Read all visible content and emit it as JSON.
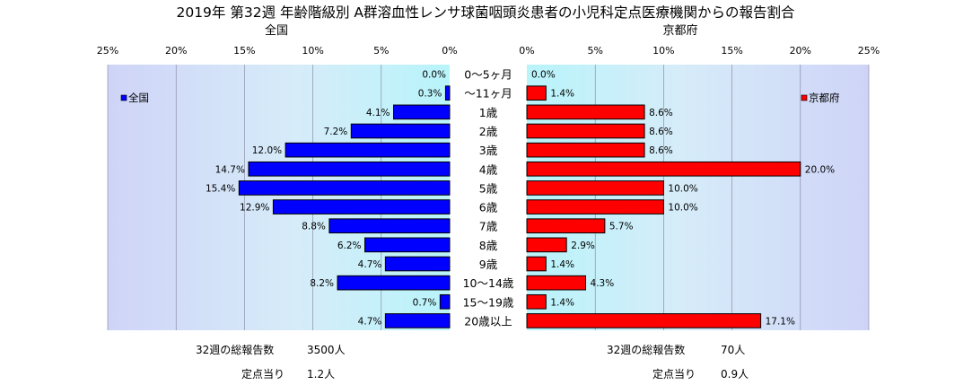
{
  "chart_data": {
    "type": "bar",
    "title": "2019年 第32週 年齢階級別 A群溶血性レンサ球菌咽頭炎患者の小児科定点医療機関からの報告割合",
    "categories": [
      "0～5ヶ月",
      "～11ヶ月",
      "1歳",
      "2歳",
      "3歳",
      "4歳",
      "5歳",
      "6歳",
      "7歳",
      "8歳",
      "9歳",
      "10～14歳",
      "15～19歳",
      "20歳以上"
    ],
    "xlim": [
      0,
      25
    ],
    "ticks": [
      "0%",
      "5%",
      "10%",
      "15%",
      "20%",
      "25%"
    ],
    "series": [
      {
        "name": "全国",
        "panel_title": "全国",
        "legend": "全国",
        "color": "#0000ff",
        "values": [
          0.0,
          0.3,
          4.1,
          7.2,
          12.0,
          14.7,
          15.4,
          12.9,
          8.8,
          6.2,
          4.7,
          8.2,
          0.7,
          4.7
        ],
        "labels": [
          "0.0%",
          "0.3%",
          "4.1%",
          "7.2%",
          "12.0%",
          "14.7%",
          "15.4%",
          "12.9%",
          "8.8%",
          "6.2%",
          "4.7%",
          "8.2%",
          "0.7%",
          "4.7%"
        ]
      },
      {
        "name": "京都府",
        "panel_title": "京都府",
        "legend": "京都府",
        "color": "#ff0000",
        "values": [
          0.0,
          1.4,
          8.6,
          8.6,
          8.6,
          20.0,
          10.0,
          10.0,
          5.7,
          2.9,
          1.4,
          4.3,
          1.4,
          17.1
        ],
        "labels": [
          "0.0%",
          "1.4%",
          "8.6%",
          "8.6%",
          "8.6%",
          "20.0%",
          "10.0%",
          "10.0%",
          "5.7%",
          "2.9%",
          "1.4%",
          "4.3%",
          "1.4%",
          "17.1%"
        ]
      }
    ]
  },
  "footer": {
    "national": {
      "total_label": "32週の総報告数",
      "total_value": "3500人",
      "per_label": "定点当り",
      "per_value": "1.2人"
    },
    "kyoto": {
      "total_label": "32週の総報告数",
      "total_value": "70人",
      "per_label": "定点当り",
      "per_value": "0.9人"
    }
  }
}
